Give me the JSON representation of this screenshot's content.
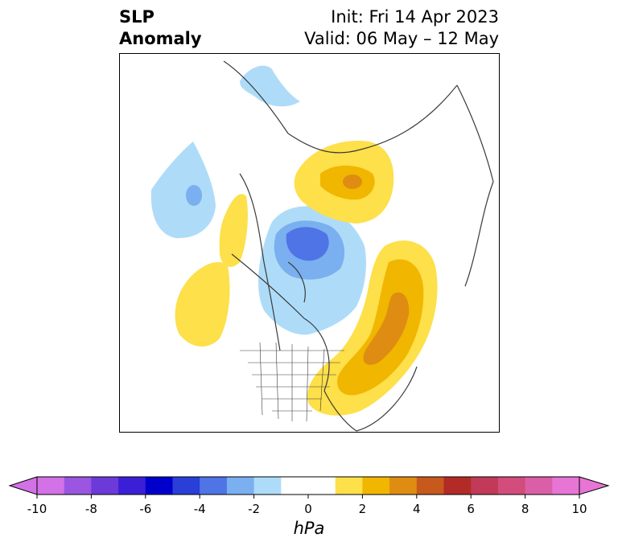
{
  "title": {
    "left_line1": "SLP",
    "left_line2": "Anomaly",
    "init": "Init: Fri 14 Apr 2023",
    "valid": "Valid: 06 May – 12 May"
  },
  "colorbar": {
    "unit": "hPa",
    "colors": [
      "#d272e6",
      "#9b55e0",
      "#6c3ad8",
      "#3b1fd6",
      "#0000cc",
      "#2a3ed8",
      "#4f74e6",
      "#7aaff0",
      "#aedcf8",
      "#ffffff",
      "#ffffff",
      "#fde04a",
      "#f1b600",
      "#de8d12",
      "#c7591c",
      "#b22b26",
      "#c23a58",
      "#d24c7c",
      "#db5fa6",
      "#e675d6"
    ],
    "tick_labels": [
      "-10",
      "-8",
      "-6",
      "-4",
      "-2",
      "0",
      "2",
      "4",
      "6",
      "8",
      "10"
    ]
  },
  "map_palette": {
    "light_blue": "#aedcf8",
    "mid_blue": "#7aaff0",
    "blue": "#4f74e6",
    "yellow": "#fde04a",
    "gold": "#f1b600",
    "orange": "#de8d12",
    "coast": "#3a3a3a"
  }
}
